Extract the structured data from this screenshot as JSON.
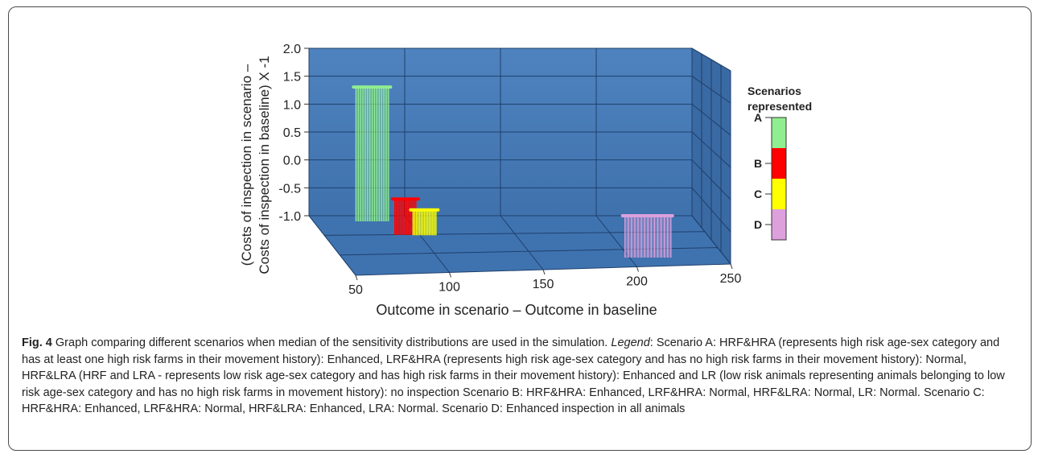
{
  "chart_data": {
    "type": "bar",
    "xlabel": "Outcome in scenario – Outcome in baseline",
    "ylabel_line1": "(Costs of inspection in scenario –",
    "ylabel_line2": "Costs of inspection in baseline) X -1",
    "xlim": [
      50,
      250
    ],
    "ylim": [
      -1.0,
      2.0
    ],
    "x_ticks": [
      "50",
      "100",
      "150",
      "200",
      "250"
    ],
    "y_ticks": [
      "2.0",
      "1.5",
      "1.0",
      "0.5",
      "0.0",
      "-0.5",
      "-1.0"
    ],
    "series": [
      {
        "name": "A",
        "x": [
          72,
          89
        ],
        "y": 1.35,
        "color": "#90ee90"
      },
      {
        "name": "B",
        "x": [
          86,
          97
        ],
        "y": -0.55,
        "color": "#ff0000"
      },
      {
        "name": "C",
        "x": [
          93,
          105
        ],
        "y": -0.7,
        "color": "#ffff00"
      },
      {
        "name": "D",
        "x": [
          215,
          239
        ],
        "y": -1.0,
        "color": "#dda0dd"
      }
    ],
    "legend": {
      "title_line1": "Scenarios",
      "title_line2": "represented",
      "items": [
        "A",
        "B",
        "C",
        "D"
      ],
      "colors": [
        "#90ee90",
        "#ff0000",
        "#ffff00",
        "#dda0dd"
      ],
      "placement": "right"
    }
  },
  "caption": {
    "fig_label": "Fig. 4",
    "text1": " Graph comparing different scenarios when median of the sensitivity distributions are used in the simulation. ",
    "legend_word": "Legend",
    "text2": ": Scenario A: HRF&HRA (represents high risk age-sex category and has at least one high risk farms in their movement history): Enhanced, LRF&HRA (represents high risk age-sex category and has no high risk farms in their movement history): Normal, HRF&LRA (HRF and LRA - represents low risk age-sex category and has high risk farms in their movement history): Enhanced and LR (low risk animals representing animals belonging to low risk age-sex category and has no high risk farms in movement history): no inspection Scenario B: HRF&HRA: Enhanced, LRF&HRA: Normal, HRF&LRA: Normal, LR: Normal. Scenario C: HRF&HRA: Enhanced, LRF&HRA: Normal, HRF&LRA: Enhanced, LRA: Normal. Scenario D: Enhanced inspection in all animals"
  }
}
